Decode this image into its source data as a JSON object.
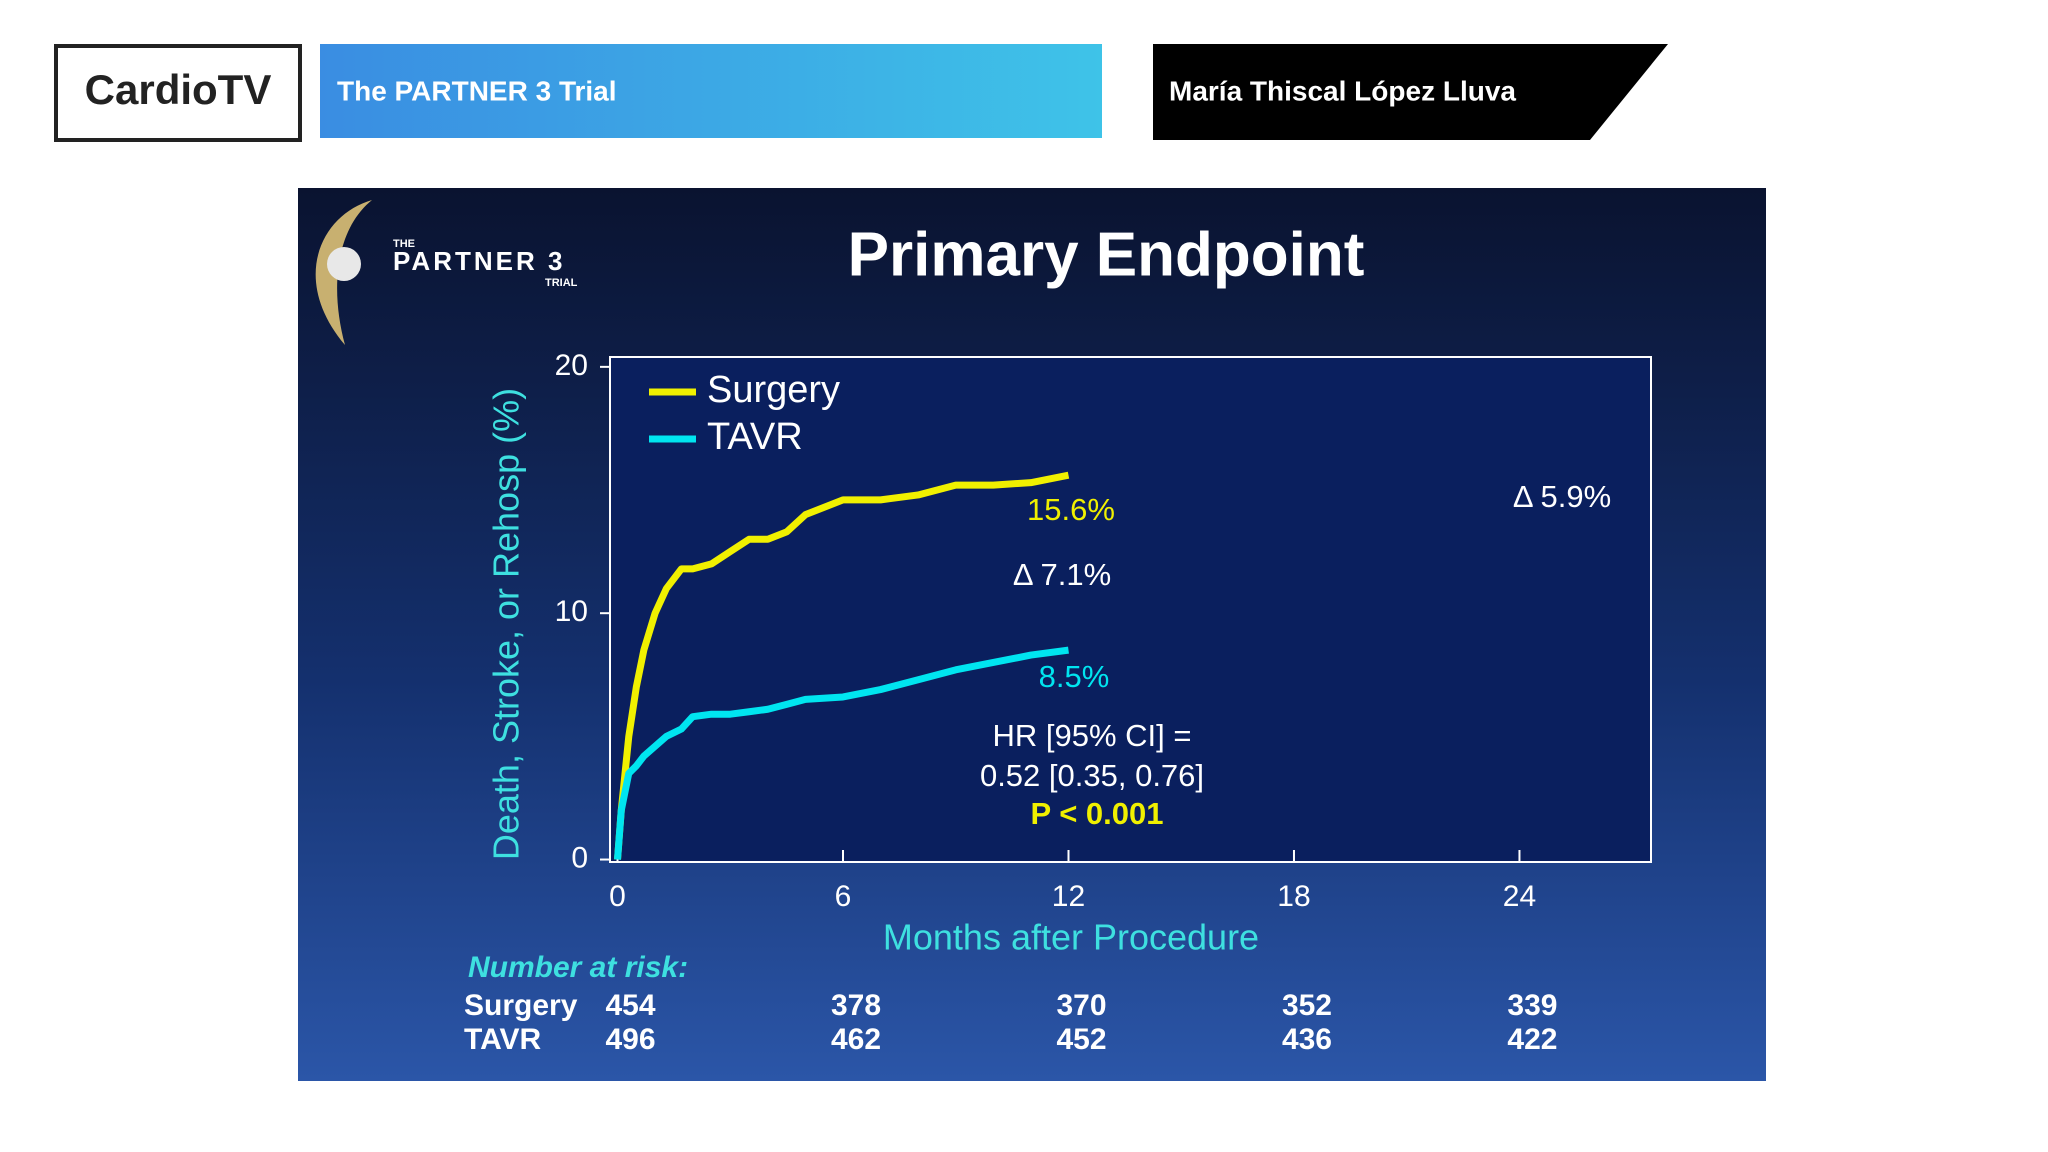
{
  "header": {
    "brand": "CardioTV",
    "title": "The PARTNER 3 Trial",
    "speaker": "María Thiscal López Lluva"
  },
  "logo": {
    "small": "THE",
    "name": "PARTNER 3",
    "sub": "TRIAL"
  },
  "chart_data": {
    "type": "line",
    "title": "Primary Endpoint",
    "x_label": "Months after Procedure",
    "y_label": "Death, Stroke, or Rehosp (%)",
    "x": [
      0,
      0.1,
      0.3,
      0.5,
      0.7,
      1,
      1.3,
      1.7,
      2,
      2.5,
      3,
      3.5,
      4,
      4.5,
      5,
      6,
      7,
      8,
      9,
      10,
      11,
      12
    ],
    "series": [
      {
        "name": "Surgery",
        "color": "#f0f000",
        "values": [
          0,
          2,
          5,
          7,
          8.5,
          10,
          11,
          11.8,
          11.8,
          12,
          12.5,
          13,
          13,
          13.3,
          14,
          14.6,
          14.6,
          14.8,
          15.2,
          15.2,
          15.3,
          15.6
        ],
        "end_label": "15.6%"
      },
      {
        "name": "TAVR",
        "color": "#00e5f0",
        "values": [
          0,
          2,
          3.5,
          3.8,
          4.2,
          4.6,
          5,
          5.3,
          5.8,
          5.9,
          5.9,
          6,
          6.1,
          6.3,
          6.5,
          6.6,
          6.9,
          7.3,
          7.7,
          8,
          8.3,
          8.5
        ],
        "end_label": "8.5%"
      }
    ],
    "xlim": [
      -0.2,
      27.5
    ],
    "ylim": [
      -0.1,
      20.4
    ],
    "xticks": [
      0,
      6,
      12,
      18,
      24
    ],
    "yticks": [
      0,
      10,
      20
    ],
    "legend": "upper left",
    "annotations": [
      "Δ 7.1%",
      "Δ 5.9%",
      "HR [95% CI] =",
      "0.52 [0.35, 0.76]",
      "P < 0.001"
    ],
    "risk_table": {
      "title": "Number at risk:",
      "rows": [
        {
          "name": "Surgery",
          "values": [
            454,
            378,
            370,
            352,
            339
          ]
        },
        {
          "name": "TAVR",
          "values": [
            496,
            462,
            452,
            436,
            422
          ]
        }
      ]
    }
  }
}
